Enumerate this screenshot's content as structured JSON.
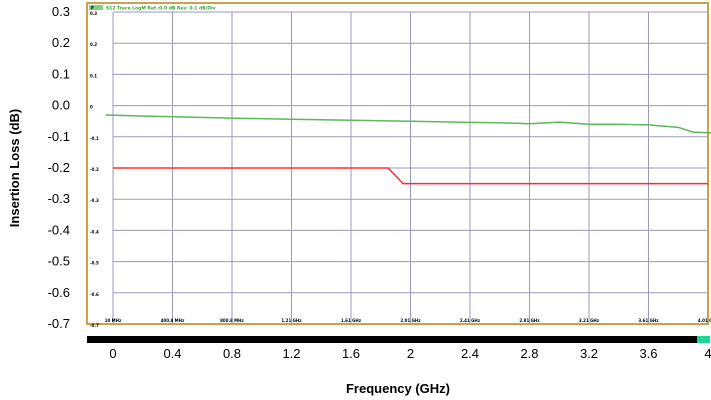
{
  "chart_data": {
    "type": "line",
    "xlabel": "Frequency (GHz)",
    "ylabel": "Insertion Loss (dB)",
    "xlim": [
      0,
      4
    ],
    "ylim": [
      -0.7,
      0.3
    ],
    "x_ticks": [
      "0",
      "0.4",
      "0.8",
      "1.2",
      "1.6",
      "2",
      "2.4",
      "2.8",
      "3.2",
      "3.6",
      "4"
    ],
    "y_ticks": [
      "0.3",
      "0.2",
      "0.1",
      "0.0",
      "-0.1",
      "-0.2",
      "-0.3",
      "-0.4",
      "-0.5",
      "-0.6",
      "-0.7"
    ],
    "grid": true,
    "series": [
      {
        "color": "#5cb85c",
        "x": [
          -0.05,
          0.4,
          0.8,
          1.2,
          1.6,
          2.0,
          2.4,
          2.6,
          2.8,
          3.0,
          3.2,
          3.4,
          3.6,
          3.8,
          3.9,
          4.05
        ],
        "y": [
          -0.03,
          -0.036,
          -0.04,
          -0.044,
          -0.047,
          -0.05,
          -0.054,
          -0.055,
          -0.058,
          -0.053,
          -0.06,
          -0.06,
          -0.062,
          -0.07,
          -0.085,
          -0.088
        ]
      },
      {
        "color": "#ff2a2a",
        "x": [
          0.0,
          1.85,
          1.95,
          4.0
        ],
        "y": [
          -0.2,
          -0.2,
          -0.25,
          -0.25
        ]
      }
    ],
    "inner_y_labels": [
      "0.3",
      "0.2",
      "0.1",
      "0",
      "-0.1",
      "-0.2",
      "-0.3",
      "-0.4",
      "-0.5",
      "-0.6",
      "-0.7"
    ],
    "inner_x_labels": [
      "10 MHz",
      "400.8 MHz",
      "800.8 MHz",
      "1.21 GHz",
      "1.61 GHz",
      "2.01 GHz",
      "2.41 GHz",
      "2.81 GHz",
      "3.21 GHz",
      "3.61 GHz",
      "4.01 GHz"
    ],
    "header_text": "S12 Trace LogM Ref.:0.0 dB Res: 0.1 dB/Div",
    "header_tag": "F"
  },
  "colors": {
    "frame": "#c9a24a",
    "grid": "#9a9ab8",
    "bottom_bar": "#000000",
    "marker": "#1fd39a"
  }
}
